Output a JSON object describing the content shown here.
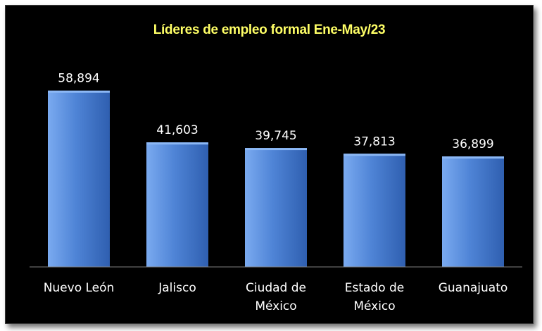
{
  "chart_data": {
    "type": "bar",
    "title": "Líderes de empleo formal  Ene-May/23",
    "categories": [
      [
        "Nuevo León"
      ],
      [
        "Jalisco"
      ],
      [
        "Ciudad de",
        "México"
      ],
      [
        "Estado de",
        "México"
      ],
      [
        "Guanajuato"
      ]
    ],
    "values": [
      58894,
      41603,
      39745,
      37813,
      36899
    ],
    "value_labels": [
      "58,894",
      "41,603",
      "39,745",
      "37,813",
      "36,899"
    ],
    "ylim": [
      0,
      60000
    ],
    "grid": false,
    "legend": "none"
  },
  "colors": {
    "background": "#000000",
    "title": "#ffff66",
    "bar_light": "#7aaaf0",
    "bar_mid": "#4f84d6",
    "bar_dark": "#2f5fb0",
    "bar_top": "#8cb8f5",
    "text": "#ffffff",
    "axis": "#808080"
  }
}
